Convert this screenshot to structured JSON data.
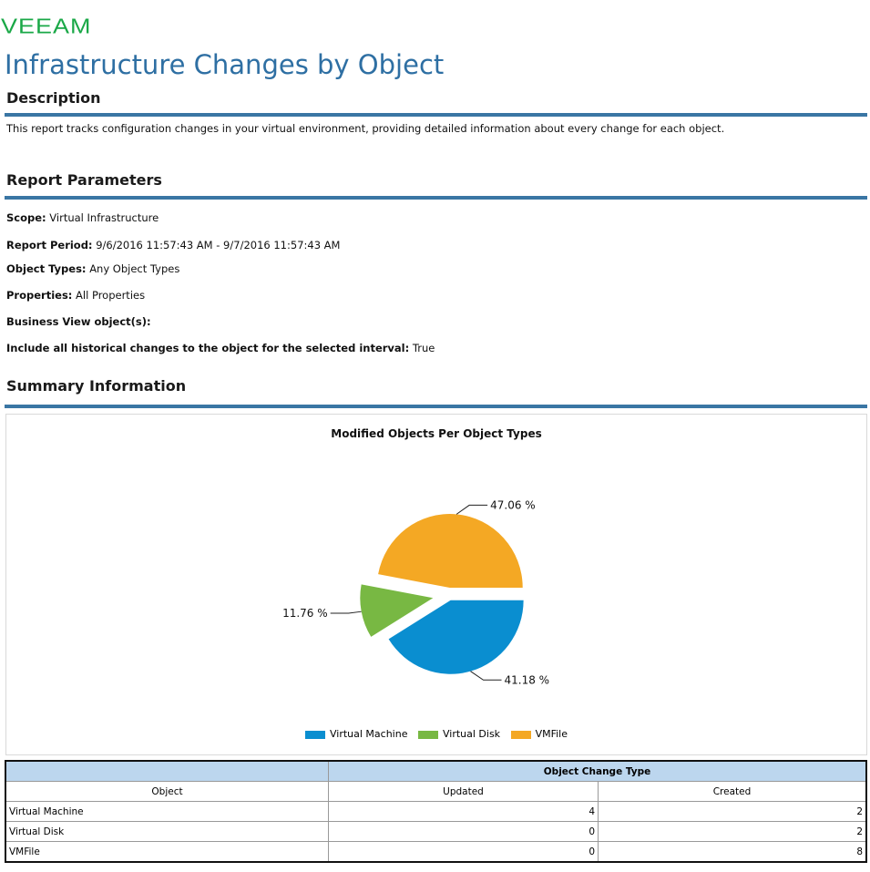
{
  "brand": {
    "logo_text": "VEEAM",
    "color": "#1aa847"
  },
  "report": {
    "title": "Infrastructure Changes by Object",
    "accent": "#2e6fa3",
    "description_heading": "Description",
    "description_text": "This report tracks configuration changes in your virtual environment, providing detailed information about every change for each object.",
    "parameters_heading": "Report Parameters",
    "parameters": [
      {
        "label": "Scope:",
        "value": "Virtual Infrastructure"
      },
      {
        "label": "Report Period:",
        "value": "9/6/2016 11:57:43 AM - 9/7/2016 11:57:43 AM"
      },
      {
        "label": "Object Types:",
        "value": "Any Object Types"
      },
      {
        "label": "Properties:",
        "value": "All Properties"
      },
      {
        "label": "Business View object(s):",
        "value": ""
      },
      {
        "label": "Include all historical changes to the object for the selected interval:",
        "value": "True"
      }
    ],
    "summary_heading": "Summary Information"
  },
  "chart_data": {
    "type": "pie",
    "title": "Modified Objects Per Object Types",
    "categories": [
      "Virtual Machine",
      "Virtual Disk",
      "VMFile"
    ],
    "values": [
      41.18,
      11.76,
      47.06
    ],
    "value_labels": [
      "41.18 %",
      "11.76 %",
      "47.06 %"
    ],
    "colors": [
      "#0a8ed0",
      "#78b843",
      "#f4a824"
    ],
    "legend": "bottom-center"
  },
  "table": {
    "group_header": "Object Change Type",
    "columns": [
      "Object",
      "Updated",
      "Created"
    ],
    "rows": [
      {
        "object": "Virtual Machine",
        "updated": "4",
        "created": "2"
      },
      {
        "object": "Virtual Disk",
        "updated": "0",
        "created": "2"
      },
      {
        "object": "VMFile",
        "updated": "0",
        "created": "8"
      }
    ]
  }
}
